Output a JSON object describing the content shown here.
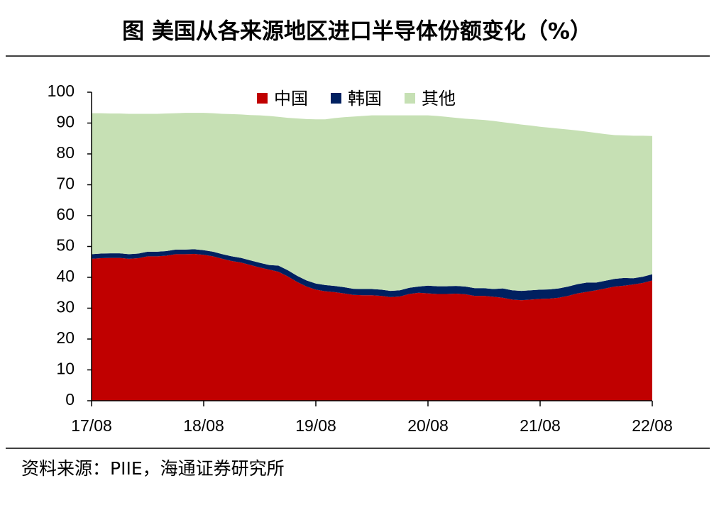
{
  "chart_data": {
    "type": "stacked_area",
    "title": "图 美国从各来源地区进口半导体份额变化（%）",
    "source": "资料来源：PIIE，海通证券研究所",
    "categories": [
      "17/08",
      null,
      null,
      null,
      null,
      null,
      null,
      null,
      null,
      null,
      null,
      null,
      "18/08",
      null,
      null,
      null,
      null,
      null,
      null,
      null,
      null,
      null,
      null,
      null,
      "19/08",
      null,
      null,
      null,
      null,
      null,
      null,
      null,
      null,
      null,
      null,
      null,
      "20/08",
      null,
      null,
      null,
      null,
      null,
      null,
      null,
      null,
      null,
      null,
      null,
      "21/08",
      null,
      null,
      null,
      null,
      null,
      null,
      null,
      null,
      null,
      null,
      null,
      "22/08"
    ],
    "series": [
      {
        "name": "中国",
        "color": "#c00000",
        "values": [
          46,
          46.2,
          46.3,
          46.3,
          46.0,
          46.2,
          46.8,
          46.8,
          47.0,
          47.5,
          47.5,
          47.6,
          47.3,
          46.8,
          46.0,
          45.3,
          44.8,
          44.0,
          43.2,
          42.5,
          41.8,
          40.3,
          38.5,
          37.0,
          36.0,
          35.5,
          35.2,
          34.8,
          34.3,
          34.2,
          34.2,
          34.0,
          33.6,
          33.8,
          34.6,
          35.0,
          34.8,
          34.6,
          34.6,
          34.7,
          34.5,
          34.0,
          34.0,
          33.7,
          33.4,
          32.8,
          32.6,
          32.8,
          33.0,
          33.1,
          33.4,
          34.0,
          34.8,
          35.3,
          35.8,
          36.4,
          37.0,
          37.3,
          37.7,
          38.2,
          39.0
        ]
      },
      {
        "name": "韩国",
        "color": "#002060",
        "values": [
          1.5,
          1.5,
          1.5,
          1.5,
          1.5,
          1.5,
          1.5,
          1.5,
          1.5,
          1.5,
          1.5,
          1.5,
          1.5,
          1.5,
          1.5,
          1.5,
          1.5,
          1.5,
          1.5,
          1.5,
          2,
          2,
          2,
          2,
          2,
          2,
          2,
          2,
          2,
          2,
          2,
          2,
          2,
          2,
          2,
          2,
          2.5,
          2.5,
          2.5,
          2.5,
          2.5,
          2.5,
          2.5,
          2.5,
          3,
          3,
          3,
          3,
          3,
          3,
          3,
          3,
          3,
          3,
          2.5,
          2.5,
          2.5,
          2.5,
          2,
          2,
          2
        ]
      },
      {
        "name": "其他",
        "color": "#c6e0b4",
        "values": [
          45.7,
          45.5,
          45.3,
          45.3,
          45.5,
          45.3,
          44.7,
          44.7,
          44.6,
          44.2,
          44.3,
          44.2,
          44.5,
          44.9,
          45.5,
          46.1,
          46.5,
          47.1,
          47.8,
          48.3,
          48.2,
          49.4,
          51.0,
          52.3,
          53.2,
          53.7,
          54.4,
          55.1,
          55.8,
          56.1,
          56.3,
          56.5,
          56.9,
          56.7,
          55.9,
          55.5,
          55.2,
          55.2,
          54.9,
          54.5,
          54.4,
          54.7,
          54.5,
          54.5,
          53.9,
          54.1,
          53.9,
          53.4,
          52.8,
          52.4,
          51.8,
          50.9,
          49.8,
          48.9,
          48.5,
          47.5,
          46.6,
          46.2,
          46.2,
          45.7,
          44.8
        ]
      }
    ],
    "ylim": [
      0,
      100
    ],
    "yticks": [
      0,
      10,
      20,
      30,
      40,
      50,
      60,
      70,
      80,
      90,
      100
    ],
    "legend": "top",
    "grid": false
  }
}
